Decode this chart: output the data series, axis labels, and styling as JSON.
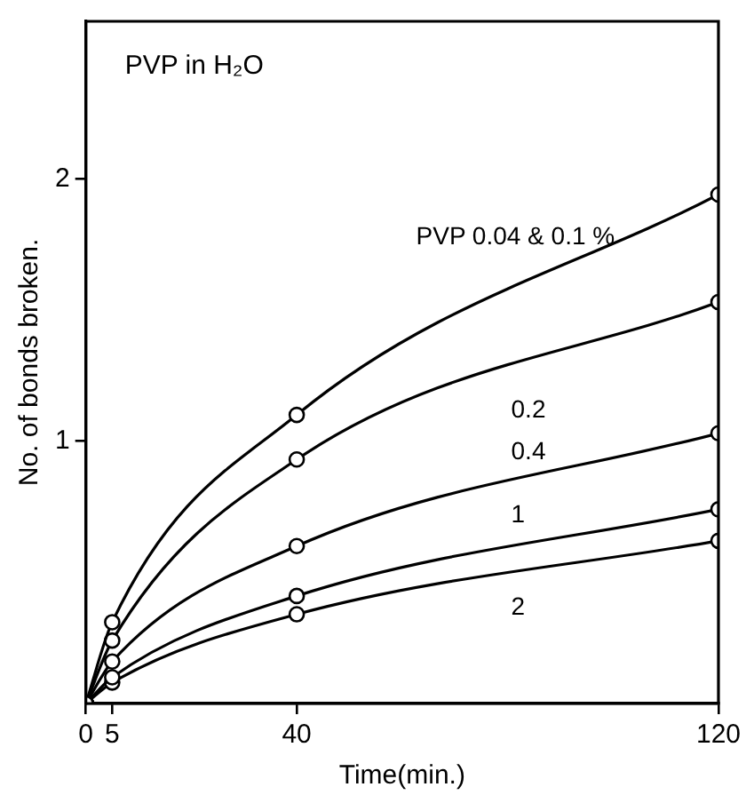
{
  "chart_data": {
    "type": "line",
    "title": "PVP in H₂O",
    "xlabel": "Time(min.)",
    "ylabel": "No. of bonds broken.",
    "x": [
      0,
      5,
      40,
      120
    ],
    "series": [
      {
        "name": "PVP 0.04 & 0.1 %",
        "color": "#000000",
        "values": [
          0,
          0.31,
          1.1,
          1.94
        ]
      },
      {
        "name": "0.2",
        "color": "#000000",
        "values": [
          0,
          0.24,
          0.93,
          1.53
        ]
      },
      {
        "name": "0.4",
        "color": "#000000",
        "values": [
          0,
          0.16,
          0.6,
          1.03
        ]
      },
      {
        "name": "1",
        "color": "#000000",
        "values": [
          0,
          0.1,
          0.41,
          0.74
        ]
      },
      {
        "name": "2",
        "color": "#000000",
        "values": [
          0,
          0.08,
          0.34,
          0.62
        ]
      }
    ],
    "xlim": [
      0,
      120
    ],
    "ylim": [
      0,
      2.6
    ],
    "xticks": [
      0,
      5,
      40,
      120
    ],
    "yticks": [
      1,
      2
    ],
    "grid": false,
    "legend": false,
    "marker": "circle",
    "line_style": "solid"
  }
}
